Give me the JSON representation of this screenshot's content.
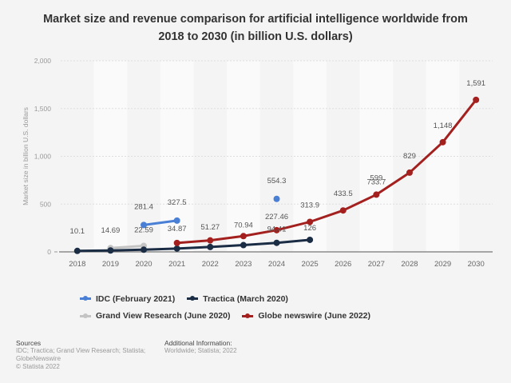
{
  "title": "Market size and revenue comparison for artificial intelligence worldwide from 2018 to 2030 (in billion U.S. dollars)",
  "chart_data": {
    "type": "line",
    "title": "Market size and revenue comparison for artificial intelligence worldwide from 2018 to 2030 (in billion U.S. dollars)",
    "xlabel": "",
    "ylabel": "Market size in billion U.S. dollars",
    "ylim": [
      0,
      2000
    ],
    "yticks": [
      0,
      500,
      1000,
      1500,
      2000
    ],
    "ytick_labels": [
      "0",
      "500",
      "1,000",
      "1,500",
      "2,000"
    ],
    "categories": [
      "2018",
      "2019",
      "2020",
      "2021",
      "2022",
      "2023",
      "2024",
      "2025",
      "2026",
      "2027",
      "2028",
      "2029",
      "2030"
    ],
    "grid": true,
    "legend_position": "bottom",
    "series": [
      {
        "name": "IDC (February 2021)",
        "color": "#4a7fd6",
        "values": [
          null,
          null,
          281.4,
          327.5,
          null,
          null,
          554.3,
          null,
          null,
          null,
          null,
          null,
          null
        ],
        "labels": [
          null,
          null,
          "281.4",
          "327.5",
          null,
          null,
          "554.3",
          null,
          null,
          null,
          null,
          null,
          null
        ]
      },
      {
        "name": "Tractica (March 2020)",
        "color": "#1b2d45",
        "values": [
          10.1,
          14.69,
          22.59,
          34.87,
          51.27,
          70.94,
          94.41,
          126,
          null,
          null,
          null,
          null,
          null
        ],
        "labels": [
          "10.1",
          "14.69",
          "22.59",
          "34.87",
          "51.27",
          "70.94",
          "94.41",
          "126",
          null,
          null,
          null,
          null,
          null
        ]
      },
      {
        "name": "Grand View Research (June 2020)",
        "color": "#c4c4c4",
        "values": [
          null,
          39.9,
          62.35,
          null,
          null,
          null,
          null,
          null,
          null,
          733.7,
          null,
          null,
          null
        ],
        "labels": [
          null,
          null,
          null,
          null,
          null,
          null,
          null,
          null,
          null,
          "733.7",
          null,
          null,
          null
        ]
      },
      {
        "name": "Globe newswire (June 2022)",
        "color": "#a3201e",
        "values": [
          null,
          null,
          null,
          93.5,
          120,
          165,
          227.46,
          313.9,
          433.5,
          599,
          829,
          1148,
          1591
        ],
        "labels": [
          null,
          null,
          null,
          null,
          null,
          null,
          "227.46",
          "313.9",
          "433.5",
          "599",
          "829",
          "1,148",
          "1,591"
        ]
      }
    ]
  },
  "legend": [
    {
      "label": "IDC (February 2021)",
      "color": "#4a7fd6"
    },
    {
      "label": "Tractica (March 2020)",
      "color": "#1b2d45"
    },
    {
      "label": "Grand View Research (June 2020)",
      "color": "#c4c4c4"
    },
    {
      "label": "Globe newswire (June 2022)",
      "color": "#a3201e"
    }
  ],
  "footer": {
    "sources_heading": "Sources",
    "sources_text": "IDC; Tractica; Grand View Research; Statista; GlobeNewswire",
    "copyright": "© Statista 2022",
    "additional_heading": "Additional Information:",
    "additional_text": "Worldwide; Statista; 2022"
  }
}
